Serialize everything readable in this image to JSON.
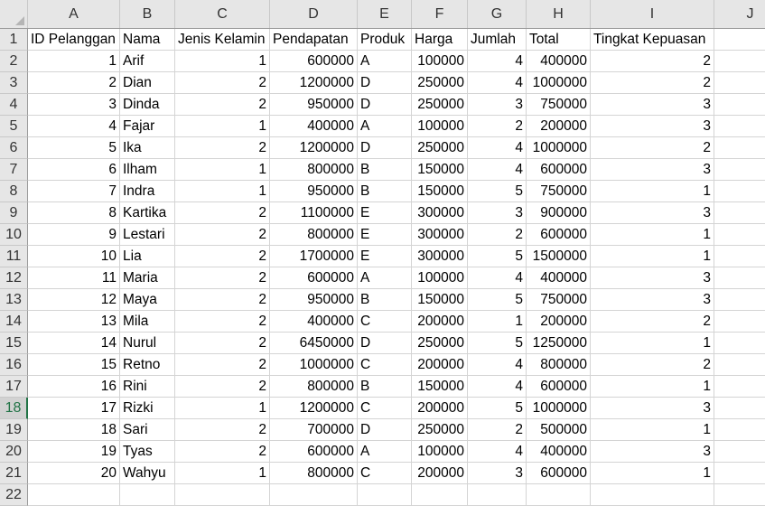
{
  "colors": {
    "header_bg": "#e6e6e6",
    "grid_line": "#d4d4d4",
    "selected_row_accent": "#217346"
  },
  "columns": [
    "A",
    "B",
    "C",
    "D",
    "E",
    "F",
    "G",
    "H",
    "I",
    "J"
  ],
  "row_numbers": [
    "1",
    "2",
    "3",
    "4",
    "5",
    "6",
    "7",
    "8",
    "9",
    "10",
    "11",
    "12",
    "13",
    "14",
    "15",
    "16",
    "17",
    "18",
    "19",
    "20",
    "21",
    "22"
  ],
  "selected_row": "18",
  "headers": [
    "ID Pelanggan",
    "Nama",
    "Jenis Kelamin",
    "Pendapatan",
    "Produk",
    "Harga",
    "Jumlah",
    "Total",
    "Tingkat Kepuasan"
  ],
  "rows": [
    [
      "1",
      "Arif",
      "1",
      "600000",
      "A",
      "100000",
      "4",
      "400000",
      "2"
    ],
    [
      "2",
      "Dian",
      "2",
      "1200000",
      "D",
      "250000",
      "4",
      "1000000",
      "2"
    ],
    [
      "3",
      "Dinda",
      "2",
      "950000",
      "D",
      "250000",
      "3",
      "750000",
      "3"
    ],
    [
      "4",
      "Fajar",
      "1",
      "400000",
      "A",
      "100000",
      "2",
      "200000",
      "3"
    ],
    [
      "5",
      "Ika",
      "2",
      "1200000",
      "D",
      "250000",
      "4",
      "1000000",
      "2"
    ],
    [
      "6",
      "Ilham",
      "1",
      "800000",
      "B",
      "150000",
      "4",
      "600000",
      "3"
    ],
    [
      "7",
      "Indra",
      "1",
      "950000",
      "B",
      "150000",
      "5",
      "750000",
      "1"
    ],
    [
      "8",
      "Kartika",
      "2",
      "1100000",
      "E",
      "300000",
      "3",
      "900000",
      "3"
    ],
    [
      "9",
      "Lestari",
      "2",
      "800000",
      "E",
      "300000",
      "2",
      "600000",
      "1"
    ],
    [
      "10",
      "Lia",
      "2",
      "1700000",
      "E",
      "300000",
      "5",
      "1500000",
      "1"
    ],
    [
      "11",
      "Maria",
      "2",
      "600000",
      "A",
      "100000",
      "4",
      "400000",
      "3"
    ],
    [
      "12",
      "Maya",
      "2",
      "950000",
      "B",
      "150000",
      "5",
      "750000",
      "3"
    ],
    [
      "13",
      "Mila",
      "2",
      "400000",
      "C",
      "200000",
      "1",
      "200000",
      "2"
    ],
    [
      "14",
      "Nurul",
      "2",
      "6450000",
      "D",
      "250000",
      "5",
      "1250000",
      "1"
    ],
    [
      "15",
      "Retno",
      "2",
      "1000000",
      "C",
      "200000",
      "4",
      "800000",
      "2"
    ],
    [
      "16",
      "Rini",
      "2",
      "800000",
      "B",
      "150000",
      "4",
      "600000",
      "1"
    ],
    [
      "17",
      "Rizki",
      "1",
      "1200000",
      "C",
      "200000",
      "5",
      "1000000",
      "3"
    ],
    [
      "18",
      "Sari",
      "2",
      "700000",
      "D",
      "250000",
      "2",
      "500000",
      "1"
    ],
    [
      "19",
      "Tyas",
      "2",
      "600000",
      "A",
      "100000",
      "4",
      "400000",
      "3"
    ],
    [
      "20",
      "Wahyu",
      "1",
      "800000",
      "C",
      "200000",
      "3",
      "600000",
      "1"
    ]
  ]
}
